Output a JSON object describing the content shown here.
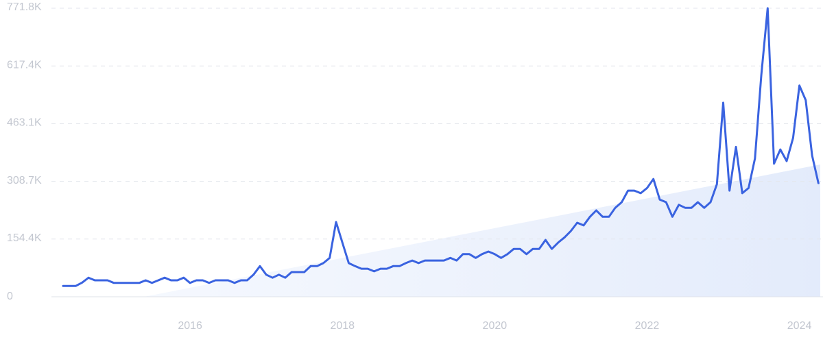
{
  "chart_data": {
    "type": "line",
    "color": "#3a63e0",
    "grid": true,
    "xlim": [
      2014.18,
      2024.31
    ],
    "xticks": [
      2016,
      2018,
      2020,
      2022,
      2024
    ],
    "ylim": [
      0,
      771800
    ],
    "yticks": [
      0,
      {
        "value": 154360,
        "label": "154.4K"
      },
      {
        "value": 308720,
        "label": "308.7K"
      },
      {
        "value": 463080,
        "label": "463.1K"
      },
      {
        "value": 617440,
        "label": "617.4K"
      },
      {
        "value": 771800,
        "label": "771.8K"
      }
    ],
    "x": [
      2014.333,
      2014.417,
      2014.5,
      2014.583,
      2014.667,
      2014.75,
      2014.833,
      2014.917,
      2015.0,
      2015.083,
      2015.167,
      2015.25,
      2015.333,
      2015.417,
      2015.5,
      2015.583,
      2015.667,
      2015.75,
      2015.833,
      2015.917,
      2016.0,
      2016.083,
      2016.167,
      2016.25,
      2016.333,
      2016.417,
      2016.5,
      2016.583,
      2016.667,
      2016.75,
      2016.833,
      2016.917,
      2017.0,
      2017.083,
      2017.167,
      2017.25,
      2017.333,
      2017.417,
      2017.5,
      2017.583,
      2017.667,
      2017.75,
      2017.833,
      2017.917,
      2018.0,
      2018.083,
      2018.167,
      2018.25,
      2018.333,
      2018.417,
      2018.5,
      2018.583,
      2018.667,
      2018.75,
      2018.833,
      2018.917,
      2019.0,
      2019.083,
      2019.167,
      2019.25,
      2019.333,
      2019.417,
      2019.5,
      2019.583,
      2019.667,
      2019.75,
      2019.833,
      2019.917,
      2020.0,
      2020.083,
      2020.167,
      2020.25,
      2020.333,
      2020.417,
      2020.5,
      2020.583,
      2020.667,
      2020.75,
      2020.833,
      2020.917,
      2021.0,
      2021.083,
      2021.167,
      2021.25,
      2021.333,
      2021.417,
      2021.5,
      2021.583,
      2021.667,
      2021.75,
      2021.833,
      2021.917,
      2022.0,
      2022.083,
      2022.167,
      2022.25,
      2022.333,
      2022.417,
      2022.5,
      2022.583,
      2022.667,
      2022.75,
      2022.833,
      2022.917,
      2023.0,
      2023.083,
      2023.167,
      2023.25,
      2023.333,
      2023.417,
      2023.5,
      2023.583,
      2023.667,
      2023.75,
      2023.833,
      2023.917,
      2024.0,
      2024.083,
      2024.167,
      2024.25
    ],
    "values": [
      29000,
      29000,
      29000,
      38000,
      51000,
      44000,
      44000,
      44000,
      37000,
      37000,
      37000,
      37000,
      37000,
      44000,
      37000,
      44000,
      51000,
      44000,
      44000,
      51000,
      37000,
      44000,
      44000,
      37000,
      44000,
      44000,
      44000,
      37000,
      44000,
      44000,
      59000,
      82000,
      59000,
      51000,
      59000,
      51000,
      66000,
      66000,
      66000,
      82000,
      82000,
      90000,
      104000,
      200000,
      145000,
      90000,
      82000,
      75000,
      75000,
      68000,
      75000,
      75000,
      82000,
      82000,
      90000,
      97000,
      90000,
      97000,
      97000,
      97000,
      97000,
      104000,
      97000,
      114000,
      114000,
      104000,
      114000,
      121000,
      114000,
      104000,
      114000,
      128000,
      128000,
      114000,
      128000,
      128000,
      152000,
      128000,
      145000,
      159000,
      176000,
      198000,
      191000,
      214000,
      231000,
      214000,
      214000,
      238000,
      253000,
      284000,
      284000,
      277000,
      291000,
      315000,
      260000,
      253000,
      214000,
      246000,
      238000,
      238000,
      253000,
      238000,
      253000,
      301000,
      519000,
      284000,
      401000,
      277000,
      291000,
      370000,
      592000,
      771800,
      356000,
      394000,
      363000,
      425000,
      565000,
      526000,
      378000,
      304000
    ]
  }
}
